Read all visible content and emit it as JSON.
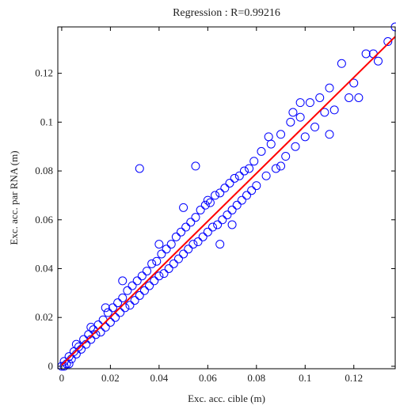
{
  "chart_data": {
    "type": "scatter",
    "title": "Regression : R=0.99216",
    "x_label": "Exc. acc. cible (m)",
    "y_label": "Exc. acc. par RNA (m)",
    "xlim": [
      -0.0016,
      0.137
    ],
    "ylim": [
      -0.001,
      0.139
    ],
    "xticks": [
      0,
      0.02,
      0.04,
      0.06,
      0.08,
      0.1,
      0.12
    ],
    "yticks": [
      0,
      0.02,
      0.04,
      0.06,
      0.08,
      0.1,
      0.12
    ],
    "series": [
      {
        "color": "#0000ff",
        "x": [
          0,
          0.001,
          0.002,
          0.003,
          0.004,
          0.005,
          0.006,
          0.007,
          0.008,
          0.009,
          0.01,
          0.011,
          0.012,
          0.013,
          0.014,
          0.015,
          0.016,
          0.017,
          0.018,
          0.019,
          0.02,
          0.021,
          0.022,
          0.023,
          0.024,
          0.025,
          0.026,
          0.027,
          0.028,
          0.029,
          0.03,
          0.031,
          0.032,
          0.033,
          0.034,
          0.035,
          0.036,
          0.037,
          0.038,
          0.039,
          0.04,
          0.041,
          0.042,
          0.043,
          0.044,
          0.045,
          0.046,
          0.047,
          0.048,
          0.049,
          0.05,
          0.051,
          0.052,
          0.053,
          0.054,
          0.055,
          0.056,
          0.057,
          0.058,
          0.059,
          0.06,
          0.061,
          0.062,
          0.063,
          0.064,
          0.065,
          0.066,
          0.067,
          0.068,
          0.069,
          0.07,
          0.071,
          0.072,
          0.073,
          0.074,
          0.075,
          0.076,
          0.077,
          0.078,
          0.079,
          0.08,
          0.082,
          0.084,
          0.086,
          0.088,
          0.09,
          0.092,
          0.094,
          0.096,
          0.098,
          0.1,
          0.102,
          0.104,
          0.106,
          0.108,
          0.11,
          0.112,
          0.115,
          0.118,
          0.12,
          0.125,
          0.128,
          0.13,
          0.134,
          0.137,
          0.032,
          0.055,
          0.001,
          0.003,
          0.006,
          0.012,
          0.018,
          0.025,
          0.06,
          0.07,
          0.085,
          0.09,
          0.05,
          0.04,
          0.065,
          0.11,
          0.122,
          0.095,
          0.098
        ],
        "y": [
          0,
          0.002,
          0.001,
          0.004,
          0.003,
          0.006,
          0.005,
          0.008,
          0.007,
          0.011,
          0.009,
          0.013,
          0.011,
          0.015,
          0.013,
          0.017,
          0.014,
          0.019,
          0.016,
          0.022,
          0.018,
          0.024,
          0.02,
          0.026,
          0.022,
          0.028,
          0.024,
          0.031,
          0.025,
          0.033,
          0.027,
          0.035,
          0.029,
          0.037,
          0.031,
          0.039,
          0.033,
          0.042,
          0.035,
          0.043,
          0.037,
          0.046,
          0.038,
          0.048,
          0.04,
          0.05,
          0.042,
          0.053,
          0.044,
          0.055,
          0.046,
          0.057,
          0.048,
          0.059,
          0.05,
          0.061,
          0.051,
          0.064,
          0.053,
          0.066,
          0.055,
          0.067,
          0.057,
          0.07,
          0.058,
          0.071,
          0.06,
          0.073,
          0.062,
          0.075,
          0.064,
          0.077,
          0.066,
          0.078,
          0.068,
          0.08,
          0.07,
          0.081,
          0.072,
          0.084,
          0.074,
          0.088,
          0.078,
          0.091,
          0.081,
          0.095,
          0.086,
          0.1,
          0.09,
          0.102,
          0.094,
          0.108,
          0.098,
          0.11,
          0.104,
          0.114,
          0.105,
          0.124,
          0.11,
          0.116,
          0.128,
          0.128,
          0.125,
          0.133,
          0.139,
          0.081,
          0.082,
          0,
          0.001,
          0.009,
          0.016,
          0.024,
          0.035,
          0.068,
          0.058,
          0.094,
          0.082,
          0.065,
          0.05,
          0.05,
          0.095,
          0.11,
          0.104,
          0.108
        ]
      }
    ],
    "regression_line": {
      "color": "#ff0000",
      "x": [
        0,
        0.137
      ],
      "y": [
        0.0005,
        0.135
      ]
    }
  }
}
